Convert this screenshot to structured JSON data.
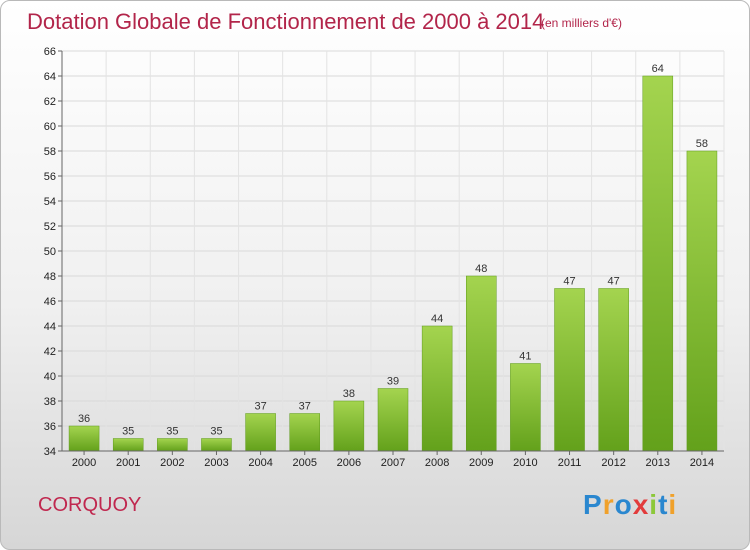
{
  "title": "Dotation Globale de Fonctionnement de 2000 à 2014",
  "unit_note": "(en milliers d'€)",
  "commune": "CORQUOY",
  "logo": {
    "text": "Proxiti",
    "letters": [
      {
        "ch": "P",
        "color": "#2a87cf"
      },
      {
        "ch": "r",
        "color": "#f0a12b"
      },
      {
        "ch": "o",
        "color": "#2a87cf"
      },
      {
        "ch": "x",
        "color": "#e23b3b"
      },
      {
        "ch": "i",
        "color": "#8cc83a"
      },
      {
        "ch": "t",
        "color": "#2a87cf"
      },
      {
        "ch": "i",
        "color": "#f0a12b"
      }
    ]
  },
  "chart_data": {
    "type": "bar",
    "categories": [
      "2000",
      "2001",
      "2002",
      "2003",
      "2004",
      "2005",
      "2006",
      "2007",
      "2008",
      "2009",
      "2010",
      "2011",
      "2012",
      "2013",
      "2014"
    ],
    "values": [
      36,
      35,
      35,
      35,
      37,
      37,
      38,
      39,
      44,
      48,
      41,
      47,
      47,
      64,
      58
    ],
    "ylim": [
      34,
      66
    ],
    "yticks": [
      34,
      36,
      38,
      40,
      42,
      44,
      46,
      48,
      50,
      52,
      54,
      56,
      58,
      60,
      62,
      64,
      66
    ],
    "grid": true,
    "bar_color_top": "#a4d44f",
    "bar_color_bottom": "#63a11b"
  }
}
